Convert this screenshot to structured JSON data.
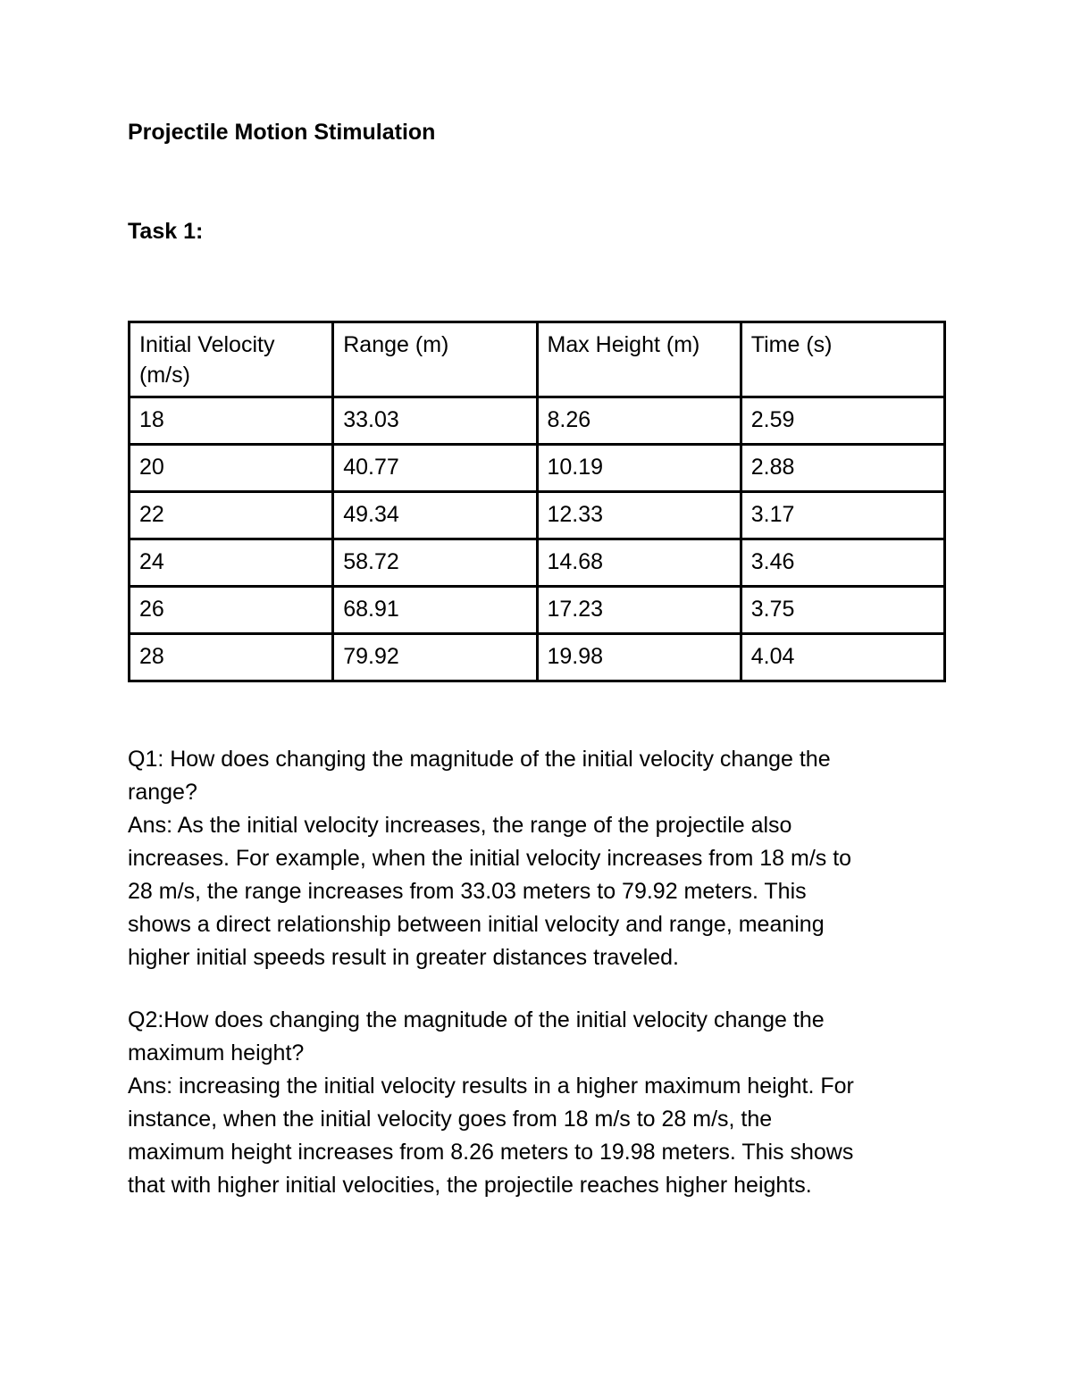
{
  "page": {
    "background_color": "#ffffff",
    "text_color": "#000000"
  },
  "document": {
    "title": "Projectile Motion Stimulation",
    "task_heading": "Task 1:",
    "table": {
      "headers": [
        "Initial Velocity (m/s)",
        "Range (m)",
        "Max Height (m)",
        "Time (s)"
      ],
      "rows": [
        [
          "18",
          "33.03",
          "8.26",
          "2.59"
        ],
        [
          "20",
          "40.77",
          "10.19",
          "2.88"
        ],
        [
          "22",
          "49.34",
          "12.33",
          "3.17"
        ],
        [
          "24",
          "58.72",
          "14.68",
          "3.46"
        ],
        [
          "26",
          "68.91",
          "17.23",
          "3.75"
        ],
        [
          "28",
          "79.92",
          "19.98",
          "4.04"
        ]
      ]
    },
    "q1_lines": [
      "Q1: How does changing the magnitude of the initial velocity change the",
      "range?",
      "Ans: As the initial velocity increases, the range of the projectile also",
      "increases. For example, when the initial velocity increases from 18 m/s to",
      "28 m/s, the range increases from 33.03 meters to 79.92 meters. This",
      "shows a direct relationship between initial velocity and range, meaning",
      "higher initial speeds result in greater distances traveled."
    ],
    "q2_lines": [
      "Q2:How does changing the magnitude of the initial velocity change the",
      "maximum height?",
      "Ans: increasing the initial velocity results in a higher maximum height. For",
      "instance, when the initial velocity goes from 18 m/s to 28 m/s, the",
      "maximum height increases from 8.26 meters to 19.98 meters. This shows",
      "that with higher initial velocities, the projectile reaches higher heights."
    ]
  }
}
